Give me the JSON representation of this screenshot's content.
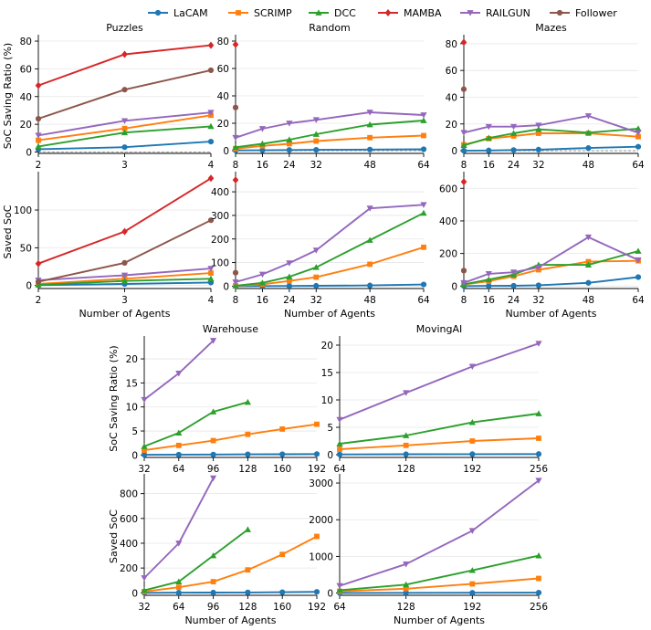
{
  "legend": [
    {
      "name": "LaCAM",
      "color": "#1f77b4",
      "marker": "circle"
    },
    {
      "name": "SCRIMP",
      "color": "#ff7f0e",
      "marker": "square"
    },
    {
      "name": "DCC",
      "color": "#2ca02c",
      "marker": "triangle-up"
    },
    {
      "name": "MAMBA",
      "color": "#d62728",
      "marker": "diamond"
    },
    {
      "name": "RAILGUN",
      "color": "#9467bd",
      "marker": "triangle-down"
    },
    {
      "name": "Follower",
      "color": "#8c564b",
      "marker": "circle"
    }
  ],
  "chart_data": [
    {
      "type": "line",
      "title": "Puzzles",
      "ylabel": "SoC Saving Ratio (%)",
      "xlabel": "",
      "x": [
        2,
        3,
        4
      ],
      "xticks": [
        2,
        3,
        4
      ],
      "xlim": [
        2,
        4
      ],
      "ylim": [
        -1,
        82
      ],
      "yticks": [
        0,
        20,
        40,
        60,
        80
      ],
      "zero_line": true,
      "series": [
        {
          "name": "LaCAM",
          "x": [
            2,
            3,
            4
          ],
          "values": [
            2,
            3.5,
            7.5
          ]
        },
        {
          "name": "SCRIMP",
          "x": [
            2,
            3,
            4
          ],
          "values": [
            8.5,
            17,
            26.5
          ]
        },
        {
          "name": "DCC",
          "x": [
            2,
            3,
            4
          ],
          "values": [
            4,
            14,
            18.5
          ]
        },
        {
          "name": "MAMBA",
          "x": [
            2,
            3,
            4
          ],
          "values": [
            48,
            70.5,
            77
          ]
        },
        {
          "name": "RAILGUN",
          "x": [
            2,
            3,
            4
          ],
          "values": [
            12,
            22.5,
            28.5
          ]
        },
        {
          "name": "Follower",
          "x": [
            2,
            3,
            4
          ],
          "values": [
            24,
            45,
            59
          ]
        }
      ]
    },
    {
      "type": "line",
      "title": "Random",
      "ylabel": "",
      "xlabel": "",
      "xticks": [
        8,
        16,
        24,
        32,
        48,
        64
      ],
      "xlim": [
        8,
        64
      ],
      "ylim": [
        -2,
        82
      ],
      "yticks": [
        0,
        20,
        40,
        60,
        80
      ],
      "zero_line": true,
      "series": [
        {
          "name": "LaCAM",
          "x": [
            8,
            16,
            24,
            32,
            48,
            64
          ],
          "values": [
            0.2,
            0.3,
            0.5,
            0.6,
            0.8,
            1
          ]
        },
        {
          "name": "SCRIMP",
          "x": [
            8,
            16,
            24,
            32,
            48,
            64
          ],
          "values": [
            1.5,
            3.5,
            5,
            7,
            9.5,
            11
          ]
        },
        {
          "name": "DCC",
          "x": [
            8,
            16,
            24,
            32,
            48,
            64
          ],
          "values": [
            2.5,
            5,
            8,
            12,
            19,
            22
          ]
        },
        {
          "name": "MAMBA",
          "x": [
            8
          ],
          "values": [
            77.5
          ]
        },
        {
          "name": "RAILGUN",
          "x": [
            8,
            16,
            24,
            32,
            48,
            64
          ],
          "values": [
            9.5,
            16,
            20,
            22.5,
            28,
            26
          ]
        },
        {
          "name": "Follower",
          "x": [
            8
          ],
          "values": [
            31.5
          ]
        }
      ]
    },
    {
      "type": "line",
      "title": "Mazes",
      "ylabel": "",
      "xlabel": "",
      "xticks": [
        8,
        16,
        24,
        32,
        48,
        64
      ],
      "xlim": [
        8,
        64
      ],
      "ylim": [
        -2,
        84
      ],
      "yticks": [
        0,
        20,
        40,
        60,
        80
      ],
      "zero_line": true,
      "series": [
        {
          "name": "LaCAM",
          "x": [
            8,
            16,
            24,
            32,
            48,
            64
          ],
          "values": [
            0,
            0.2,
            0.5,
            0.8,
            2,
            3
          ]
        },
        {
          "name": "SCRIMP",
          "x": [
            8,
            16,
            24,
            32,
            48,
            64
          ],
          "values": [
            4.5,
            9,
            11,
            13,
            13,
            10.5
          ]
        },
        {
          "name": "DCC",
          "x": [
            8,
            16,
            24,
            32,
            48,
            64
          ],
          "values": [
            4,
            9.5,
            13,
            16,
            13.5,
            16.5
          ]
        },
        {
          "name": "MAMBA",
          "x": [
            8
          ],
          "values": [
            81
          ]
        },
        {
          "name": "RAILGUN",
          "x": [
            8,
            16,
            24,
            32,
            48,
            64
          ],
          "values": [
            13.5,
            18,
            18,
            19,
            26,
            13.5
          ]
        },
        {
          "name": "Follower",
          "x": [
            8
          ],
          "values": [
            46
          ]
        }
      ]
    },
    {
      "type": "line",
      "title": "",
      "ylabel": "Saved SoC",
      "xlabel": "Number of Agents",
      "xticks": [
        2,
        3,
        4
      ],
      "xlim": [
        2,
        4
      ],
      "ylim": [
        -4,
        146
      ],
      "yticks": [
        0,
        50,
        100
      ],
      "zero_line": false,
      "series": [
        {
          "name": "LaCAM",
          "x": [
            2,
            3,
            4
          ],
          "values": [
            0.5,
            2,
            4
          ]
        },
        {
          "name": "SCRIMP",
          "x": [
            2,
            3,
            4
          ],
          "values": [
            2,
            9,
            16.5
          ]
        },
        {
          "name": "DCC",
          "x": [
            2,
            3,
            4
          ],
          "values": [
            1,
            6,
            9
          ]
        },
        {
          "name": "MAMBA",
          "x": [
            2,
            3,
            4
          ],
          "values": [
            29,
            71.5,
            142
          ]
        },
        {
          "name": "RAILGUN",
          "x": [
            2,
            3,
            4
          ],
          "values": [
            7,
            13.5,
            22.5
          ]
        },
        {
          "name": "Follower",
          "x": [
            2,
            3,
            4
          ],
          "values": [
            5,
            30,
            86.5
          ]
        }
      ]
    },
    {
      "type": "line",
      "title": "",
      "ylabel": "",
      "xlabel": "Number of Agents",
      "xticks": [
        8,
        16,
        24,
        32,
        48,
        64
      ],
      "xlim": [
        8,
        64
      ],
      "ylim": [
        -10,
        470
      ],
      "yticks": [
        0,
        100,
        200,
        300,
        400
      ],
      "zero_line": false,
      "series": [
        {
          "name": "LaCAM",
          "x": [
            8,
            16,
            24,
            32,
            48,
            64
          ],
          "values": [
            0,
            0.5,
            1,
            1.5,
            3,
            7
          ]
        },
        {
          "name": "SCRIMP",
          "x": [
            8,
            16,
            24,
            32,
            48,
            64
          ],
          "values": [
            2,
            8,
            22,
            38,
            93,
            165
          ]
        },
        {
          "name": "DCC",
          "x": [
            8,
            16,
            24,
            32,
            48,
            64
          ],
          "values": [
            2,
            14,
            40,
            80,
            195,
            310
          ]
        },
        {
          "name": "MAMBA",
          "x": [
            8
          ],
          "values": [
            450
          ]
        },
        {
          "name": "RAILGUN",
          "x": [
            8,
            16,
            24,
            32,
            48,
            64
          ],
          "values": [
            17,
            50,
            98,
            152,
            330,
            345
          ]
        },
        {
          "name": "Follower",
          "x": [
            8
          ],
          "values": [
            57
          ]
        }
      ]
    },
    {
      "type": "line",
      "title": "",
      "ylabel": "",
      "xlabel": "Number of Agents",
      "xticks": [
        8,
        16,
        24,
        32,
        48,
        64
      ],
      "xlim": [
        8,
        64
      ],
      "ylim": [
        -15,
        680
      ],
      "yticks": [
        0,
        200,
        400,
        600
      ],
      "zero_line": false,
      "series": [
        {
          "name": "LaCAM",
          "x": [
            8,
            16,
            24,
            32,
            48,
            64
          ],
          "values": [
            0,
            1,
            2,
            5,
            20,
            55
          ]
        },
        {
          "name": "SCRIMP",
          "x": [
            8,
            16,
            24,
            32,
            48,
            64
          ],
          "values": [
            10,
            30,
            60,
            100,
            150,
            155
          ]
        },
        {
          "name": "DCC",
          "x": [
            8,
            16,
            24,
            32,
            48,
            64
          ],
          "values": [
            10,
            40,
            70,
            130,
            130,
            215
          ]
        },
        {
          "name": "MAMBA",
          "x": [
            8
          ],
          "values": [
            640
          ]
        },
        {
          "name": "RAILGUN",
          "x": [
            8,
            16,
            24,
            32,
            48,
            64
          ],
          "values": [
            20,
            75,
            85,
            115,
            300,
            160
          ]
        },
        {
          "name": "Follower",
          "x": [
            8
          ],
          "values": [
            95
          ]
        }
      ]
    },
    {
      "type": "line",
      "title": "Warehouse",
      "ylabel": "SoC Saving Ratio (%)",
      "xlabel": "",
      "xticks": [
        32,
        64,
        96,
        128,
        160,
        192
      ],
      "xlim": [
        32,
        192
      ],
      "ylim": [
        -0.5,
        24
      ],
      "yticks": [
        0,
        5,
        10,
        15,
        20
      ],
      "zero_line": false,
      "series": [
        {
          "name": "LaCAM",
          "x": [
            32,
            64,
            96,
            128,
            160,
            192
          ],
          "values": [
            0.05,
            0.08,
            0.1,
            0.15,
            0.17,
            0.2
          ]
        },
        {
          "name": "SCRIMP",
          "x": [
            32,
            64,
            96,
            128,
            160,
            192
          ],
          "values": [
            1,
            2,
            3,
            4.3,
            5.4,
            6.4
          ]
        },
        {
          "name": "DCC",
          "x": [
            32,
            64,
            96,
            128
          ],
          "values": [
            1.8,
            4.6,
            9,
            11
          ]
        },
        {
          "name": "RAILGUN",
          "x": [
            32,
            64,
            96
          ],
          "values": [
            11.5,
            17,
            23.8
          ]
        }
      ]
    },
    {
      "type": "line",
      "title": "MovingAI",
      "ylabel": "",
      "xlabel": "",
      "xticks": [
        64,
        128,
        192,
        256
      ],
      "xlim": [
        64,
        256
      ],
      "ylim": [
        -0.5,
        21
      ],
      "yticks": [
        0,
        5,
        10,
        15,
        20
      ],
      "zero_line": false,
      "series": [
        {
          "name": "LaCAM",
          "x": [
            64,
            128,
            192,
            256
          ],
          "values": [
            0.05,
            0.08,
            0.1,
            0.12
          ]
        },
        {
          "name": "SCRIMP",
          "x": [
            64,
            128,
            192,
            256
          ],
          "values": [
            1,
            1.7,
            2.5,
            3
          ]
        },
        {
          "name": "DCC",
          "x": [
            64,
            128,
            192,
            256
          ],
          "values": [
            2,
            3.5,
            5.9,
            7.5
          ]
        },
        {
          "name": "RAILGUN",
          "x": [
            64,
            128,
            192,
            256
          ],
          "values": [
            6.4,
            11.3,
            16.1,
            20.3
          ]
        }
      ]
    },
    {
      "type": "line",
      "title": "",
      "ylabel": "Saved SoC",
      "xlabel": "Number of Agents",
      "xticks": [
        32,
        64,
        96,
        128,
        160,
        192
      ],
      "xlim": [
        32,
        192
      ],
      "ylim": [
        -20,
        930
      ],
      "yticks": [
        0,
        200,
        400,
        600,
        800
      ],
      "zero_line": false,
      "series": [
        {
          "name": "LaCAM",
          "x": [
            32,
            64,
            96,
            128,
            160,
            192
          ],
          "values": [
            0,
            1,
            2,
            3,
            5,
            8
          ]
        },
        {
          "name": "SCRIMP",
          "x": [
            32,
            64,
            96,
            128,
            160,
            192
          ],
          "values": [
            10,
            45,
            90,
            185,
            310,
            455
          ]
        },
        {
          "name": "DCC",
          "x": [
            32,
            64,
            96,
            128
          ],
          "values": [
            20,
            90,
            300,
            510
          ]
        },
        {
          "name": "RAILGUN",
          "x": [
            32,
            64,
            96
          ],
          "values": [
            120,
            400,
            925
          ]
        }
      ]
    },
    {
      "type": "line",
      "title": "",
      "ylabel": "",
      "xlabel": "Number of Agents",
      "xticks": [
        64,
        128,
        192,
        256
      ],
      "xlim": [
        64,
        256
      ],
      "ylim": [
        -60,
        3150
      ],
      "yticks": [
        0,
        1000,
        2000,
        3000
      ],
      "zero_line": false,
      "series": [
        {
          "name": "LaCAM",
          "x": [
            64,
            128,
            192,
            256
          ],
          "values": [
            5,
            8,
            10,
            12
          ]
        },
        {
          "name": "SCRIMP",
          "x": [
            64,
            128,
            192,
            256
          ],
          "values": [
            50,
            120,
            250,
            400
          ]
        },
        {
          "name": "DCC",
          "x": [
            64,
            128,
            192,
            256
          ],
          "values": [
            80,
            230,
            620,
            1020
          ]
        },
        {
          "name": "RAILGUN",
          "x": [
            64,
            128,
            192,
            256
          ],
          "values": [
            200,
            790,
            1700,
            3070
          ]
        }
      ]
    }
  ]
}
